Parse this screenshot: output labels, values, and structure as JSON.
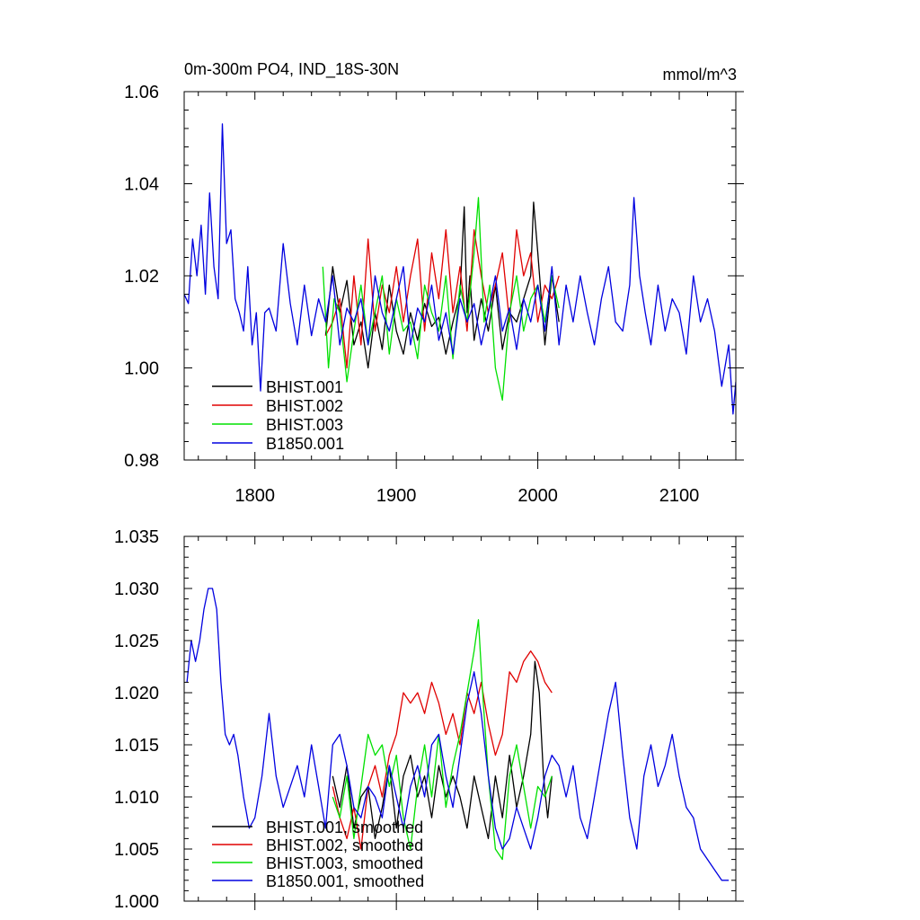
{
  "colors": {
    "BHIST.001": "#000000",
    "BHIST.002": "#e00000",
    "BHIST.003": "#00e000",
    "B1850.001": "#0000e0"
  },
  "chart_data": [
    {
      "type": "line",
      "title": "0m-300m PO4, IND_18S-30N",
      "units": "mmol/m^3",
      "xlim": [
        1750,
        2140
      ],
      "ylim": [
        0.98,
        1.06
      ],
      "xticks": [
        1800,
        1900,
        2000,
        2100
      ],
      "xtick_labels": [
        "1800",
        "1900",
        "2000",
        "2100"
      ],
      "yticks": [
        0.98,
        1.0,
        1.02,
        1.04,
        1.06
      ],
      "ytick_labels": [
        "0.98",
        "1.00",
        "1.02",
        "1.04",
        "1.06"
      ],
      "legend_position": "bottom-left",
      "series": [
        {
          "name": "BHIST.001",
          "label": "BHIST.001",
          "color_key": "BHIST.001",
          "x": [
            1850,
            1855,
            1860,
            1865,
            1870,
            1875,
            1880,
            1885,
            1890,
            1895,
            1900,
            1905,
            1910,
            1915,
            1920,
            1925,
            1930,
            1935,
            1940,
            1945,
            1948,
            1950,
            1952,
            1955,
            1960,
            1965,
            1970,
            1975,
            1980,
            1985,
            1990,
            1995,
            1997,
            2000,
            2005,
            2010,
            2015
          ],
          "y": [
            1.007,
            1.022,
            1.012,
            1.019,
            1.005,
            1.01,
            1.0,
            1.012,
            1.004,
            1.018,
            1.008,
            1.003,
            1.012,
            1.006,
            1.014,
            1.009,
            1.011,
            1.003,
            1.01,
            1.016,
            1.035,
            1.012,
            1.02,
            1.006,
            1.015,
            1.008,
            1.018,
            1.004,
            1.012,
            1.01,
            1.015,
            1.02,
            1.036,
            1.025,
            1.005,
            1.02,
            1.01
          ]
        },
        {
          "name": "BHIST.002",
          "label": "BHIST.002",
          "color_key": "BHIST.002",
          "x": [
            1850,
            1855,
            1860,
            1865,
            1870,
            1875,
            1880,
            1885,
            1890,
            1895,
            1900,
            1905,
            1910,
            1915,
            1920,
            1925,
            1930,
            1935,
            1940,
            1945,
            1950,
            1955,
            1960,
            1965,
            1970,
            1975,
            1980,
            1985,
            1990,
            1995,
            2000,
            2005,
            2010,
            2015
          ],
          "y": [
            1.007,
            1.01,
            1.015,
            1.0,
            1.02,
            1.005,
            1.028,
            1.008,
            1.018,
            1.012,
            1.022,
            1.01,
            1.02,
            1.028,
            1.008,
            1.025,
            1.015,
            1.03,
            1.012,
            1.022,
            1.008,
            1.03,
            1.02,
            1.012,
            1.018,
            1.025,
            1.01,
            1.03,
            1.02,
            1.025,
            1.01,
            1.018,
            1.015,
            1.02
          ]
        },
        {
          "name": "BHIST.003",
          "label": "BHIST.003",
          "color_key": "BHIST.003",
          "x": [
            1848,
            1852,
            1856,
            1860,
            1865,
            1870,
            1875,
            1880,
            1885,
            1890,
            1895,
            1900,
            1905,
            1910,
            1915,
            1920,
            1925,
            1930,
            1935,
            1940,
            1945,
            1950,
            1955,
            1958,
            1962,
            1966,
            1970,
            1975,
            1980,
            1985,
            1990,
            1995,
            2000,
            2005,
            2010,
            2015
          ],
          "y": [
            1.022,
            1.0,
            1.015,
            1.012,
            0.997,
            1.008,
            1.018,
            1.005,
            1.012,
            1.02,
            1.003,
            1.015,
            1.008,
            1.01,
            1.002,
            1.018,
            1.012,
            1.008,
            1.02,
            1.002,
            1.018,
            1.01,
            1.025,
            1.037,
            1.01,
            1.018,
            1.0,
            0.993,
            1.012,
            1.02,
            1.008,
            1.015,
            1.018,
            1.01,
            1.02,
            1.013
          ]
        },
        {
          "name": "B1850.001",
          "label": "B1850.001",
          "color_key": "B1850.001",
          "x": [
            1750,
            1753,
            1756,
            1759,
            1762,
            1765,
            1768,
            1771,
            1774,
            1777,
            1780,
            1783,
            1786,
            1789,
            1792,
            1795,
            1798,
            1801,
            1804,
            1807,
            1810,
            1815,
            1820,
            1825,
            1830,
            1835,
            1840,
            1845,
            1850,
            1855,
            1860,
            1865,
            1870,
            1875,
            1880,
            1885,
            1890,
            1895,
            1900,
            1905,
            1910,
            1915,
            1920,
            1925,
            1930,
            1935,
            1940,
            1945,
            1950,
            1955,
            1960,
            1965,
            1970,
            1975,
            1980,
            1985,
            1990,
            1995,
            2000,
            2005,
            2010,
            2015,
            2020,
            2025,
            2030,
            2035,
            2040,
            2045,
            2050,
            2055,
            2060,
            2065,
            2068,
            2072,
            2076,
            2080,
            2085,
            2090,
            2095,
            2100,
            2105,
            2110,
            2115,
            2120,
            2125,
            2130,
            2135,
            2138,
            2140
          ],
          "y": [
            1.016,
            1.014,
            1.028,
            1.02,
            1.031,
            1.016,
            1.038,
            1.022,
            1.015,
            1.053,
            1.027,
            1.03,
            1.015,
            1.012,
            1.008,
            1.022,
            1.005,
            1.012,
            0.995,
            1.012,
            1.013,
            1.008,
            1.027,
            1.014,
            1.005,
            1.018,
            1.007,
            1.015,
            1.01,
            1.02,
            1.005,
            1.013,
            1.01,
            1.015,
            1.005,
            1.02,
            1.012,
            1.008,
            1.015,
            1.022,
            1.005,
            1.013,
            1.01,
            1.018,
            1.006,
            1.012,
            1.003,
            1.015,
            1.01,
            1.014,
            1.005,
            1.012,
            1.02,
            1.008,
            1.013,
            1.004,
            1.015,
            1.01,
            1.018,
            1.008,
            1.022,
            1.005,
            1.018,
            1.01,
            1.02,
            1.012,
            1.005,
            1.015,
            1.022,
            1.01,
            1.008,
            1.018,
            1.037,
            1.02,
            1.012,
            1.005,
            1.018,
            1.008,
            1.015,
            1.012,
            1.003,
            1.02,
            1.01,
            1.015,
            1.008,
            0.996,
            1.005,
            0.99,
            0.997
          ]
        }
      ]
    },
    {
      "type": "line",
      "xlim": [
        1750,
        2140
      ],
      "ylim": [
        1.0,
        1.035
      ],
      "xticks": [
        1800,
        1900,
        2000,
        2100
      ],
      "yticks": [
        1.0,
        1.005,
        1.01,
        1.015,
        1.02,
        1.025,
        1.03,
        1.035
      ],
      "ytick_labels": [
        "1.000",
        "1.005",
        "1.010",
        "1.015",
        "1.020",
        "1.025",
        "1.030",
        "1.035"
      ],
      "legend_position": "bottom-left",
      "series": [
        {
          "name": "BHIST.001",
          "label": "BHIST.001, smoothed",
          "color_key": "BHIST.001",
          "x": [
            1855,
            1860,
            1865,
            1870,
            1875,
            1880,
            1885,
            1890,
            1895,
            1900,
            1905,
            1910,
            1915,
            1920,
            1925,
            1930,
            1935,
            1940,
            1945,
            1950,
            1955,
            1960,
            1965,
            1970,
            1975,
            1980,
            1985,
            1990,
            1995,
            1998,
            2001,
            2004,
            2007,
            2010
          ],
          "y": [
            1.012,
            1.009,
            1.013,
            1.007,
            1.01,
            1.011,
            1.006,
            1.009,
            1.013,
            1.007,
            1.012,
            1.014,
            1.01,
            1.012,
            1.008,
            1.013,
            1.01,
            1.012,
            1.01,
            1.007,
            1.012,
            1.009,
            1.006,
            1.012,
            1.008,
            1.014,
            1.009,
            1.012,
            1.016,
            1.023,
            1.02,
            1.012,
            1.008,
            1.012
          ]
        },
        {
          "name": "BHIST.002",
          "label": "BHIST.002, smoothed",
          "color_key": "BHIST.002",
          "x": [
            1855,
            1860,
            1865,
            1870,
            1875,
            1880,
            1885,
            1890,
            1895,
            1900,
            1905,
            1910,
            1915,
            1920,
            1925,
            1930,
            1935,
            1940,
            1945,
            1950,
            1955,
            1960,
            1965,
            1970,
            1975,
            1980,
            1985,
            1990,
            1995,
            2000,
            2005,
            2010
          ],
          "y": [
            1.011,
            1.008,
            1.006,
            1.009,
            1.005,
            1.011,
            1.013,
            1.01,
            1.014,
            1.016,
            1.02,
            1.019,
            1.02,
            1.018,
            1.021,
            1.019,
            1.016,
            1.018,
            1.015,
            1.02,
            1.018,
            1.021,
            1.017,
            1.014,
            1.016,
            1.022,
            1.021,
            1.023,
            1.024,
            1.023,
            1.021,
            1.02
          ]
        },
        {
          "name": "BHIST.003",
          "label": "BHIST.003, smoothed",
          "color_key": "BHIST.003",
          "x": [
            1855,
            1860,
            1865,
            1870,
            1875,
            1880,
            1885,
            1890,
            1895,
            1900,
            1905,
            1910,
            1915,
            1920,
            1925,
            1930,
            1935,
            1940,
            1945,
            1950,
            1955,
            1958,
            1961,
            1965,
            1970,
            1975,
            1980,
            1985,
            1990,
            1995,
            2000,
            2005,
            2010
          ],
          "y": [
            1.01,
            1.008,
            1.012,
            1.006,
            1.011,
            1.016,
            1.014,
            1.015,
            1.011,
            1.014,
            1.008,
            1.005,
            1.011,
            1.015,
            1.01,
            1.016,
            1.009,
            1.013,
            1.016,
            1.02,
            1.024,
            1.027,
            1.02,
            1.012,
            1.005,
            1.004,
            1.012,
            1.015,
            1.011,
            1.007,
            1.011,
            1.01,
            1.012
          ]
        },
        {
          "name": "B1850.001",
          "label": "B1850.001, smoothed",
          "color_key": "B1850.001",
          "x": [
            1752,
            1755,
            1758,
            1761,
            1764,
            1767,
            1770,
            1773,
            1776,
            1779,
            1782,
            1785,
            1788,
            1792,
            1796,
            1800,
            1805,
            1810,
            1815,
            1820,
            1825,
            1830,
            1835,
            1840,
            1845,
            1850,
            1855,
            1860,
            1865,
            1870,
            1875,
            1880,
            1885,
            1890,
            1895,
            1900,
            1905,
            1910,
            1915,
            1920,
            1925,
            1930,
            1935,
            1940,
            1945,
            1950,
            1955,
            1960,
            1965,
            1970,
            1975,
            1980,
            1985,
            1990,
            1995,
            2000,
            2005,
            2010,
            2015,
            2020,
            2025,
            2030,
            2035,
            2040,
            2045,
            2050,
            2055,
            2060,
            2065,
            2070,
            2075,
            2080,
            2085,
            2090,
            2095,
            2100,
            2105,
            2110,
            2115,
            2120,
            2125,
            2130,
            2135
          ],
          "y": [
            1.021,
            1.025,
            1.023,
            1.025,
            1.028,
            1.03,
            1.03,
            1.028,
            1.021,
            1.016,
            1.015,
            1.016,
            1.014,
            1.01,
            1.007,
            1.008,
            1.012,
            1.018,
            1.012,
            1.009,
            1.011,
            1.013,
            1.01,
            1.015,
            1.011,
            1.007,
            1.015,
            1.016,
            1.013,
            1.009,
            1.008,
            1.011,
            1.01,
            1.008,
            1.013,
            1.01,
            1.007,
            1.011,
            1.013,
            1.01,
            1.015,
            1.016,
            1.012,
            1.009,
            1.014,
            1.019,
            1.022,
            1.018,
            1.012,
            1.007,
            1.005,
            1.006,
            1.009,
            1.007,
            1.005,
            1.008,
            1.012,
            1.014,
            1.013,
            1.01,
            1.013,
            1.008,
            1.006,
            1.01,
            1.014,
            1.018,
            1.021,
            1.014,
            1.008,
            1.005,
            1.012,
            1.015,
            1.011,
            1.013,
            1.016,
            1.012,
            1.009,
            1.008,
            1.005,
            1.004,
            1.003,
            1.002,
            1.002
          ]
        }
      ]
    }
  ]
}
